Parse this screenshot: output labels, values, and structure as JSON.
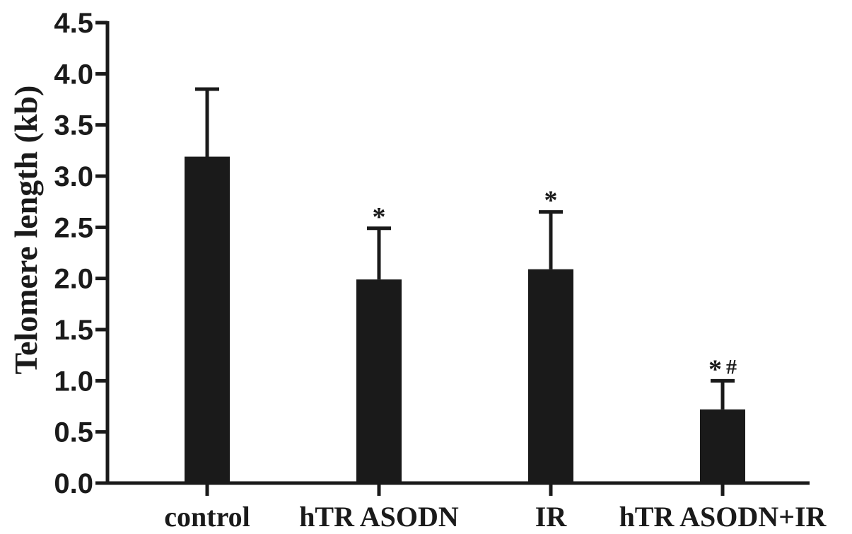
{
  "chart_data": {
    "type": "bar",
    "title": "",
    "xlabel": "",
    "ylabel": "Telomere length (kb)",
    "ylim": [
      0,
      4.5
    ],
    "yticks": [
      "0.0",
      "0.5",
      "1.0",
      "1.5",
      "2.0",
      "2.5",
      "3.0",
      "3.5",
      "4.0",
      "4.5"
    ],
    "categories": [
      "control",
      "hTR ASODN",
      "IR",
      "hTR ASODN+IR"
    ],
    "values": [
      3.19,
      1.99,
      2.09,
      0.72
    ],
    "error_upper": [
      0.66,
      0.5,
      0.56,
      0.28
    ],
    "annotations": [
      {
        "category": "hTR ASODN",
        "parts": [
          "*"
        ]
      },
      {
        "category": "IR",
        "parts": [
          "*"
        ]
      },
      {
        "category": "hTR ASODN+IR",
        "parts": [
          "*",
          "#"
        ]
      }
    ],
    "grid": false,
    "legend": "none",
    "colors": {
      "bar": "#1a1a1a",
      "axis": "#1a1a1a",
      "background": "#ffffff"
    }
  }
}
